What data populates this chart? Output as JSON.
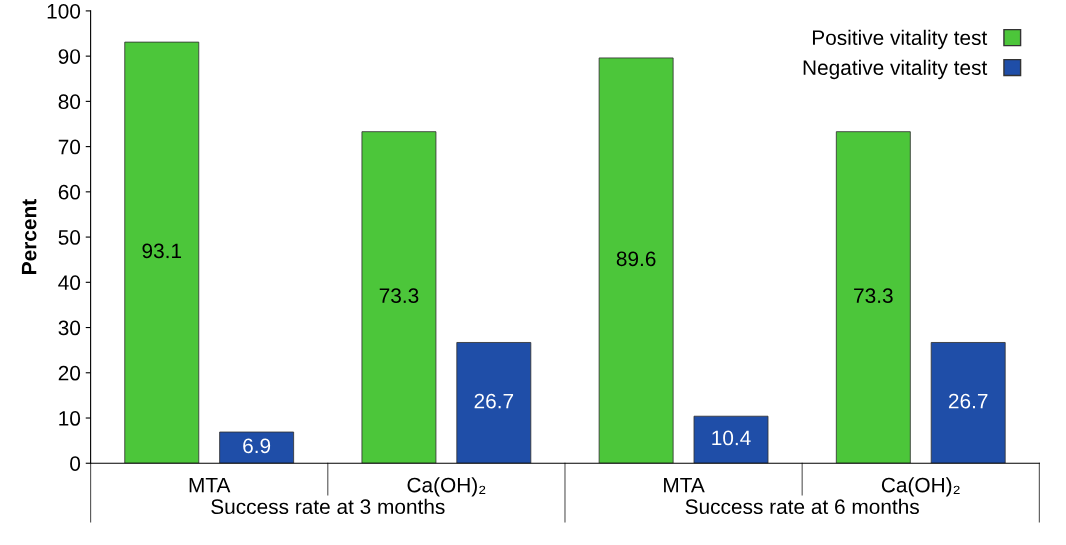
{
  "chart_data": {
    "type": "bar",
    "ylabel": "Percent",
    "categories": [
      "MTA",
      "Ca(OH)₂",
      "MTA",
      "Ca(OH)₂"
    ],
    "series": [
      {
        "name": "Positive vitality test",
        "color": "#4cc63a",
        "values": [
          93.1,
          73.3,
          89.6,
          73.3
        ]
      },
      {
        "name": "Negative vitality test",
        "color": "#1f4ea8",
        "values": [
          6.9,
          26.7,
          10.4,
          26.7
        ]
      }
    ],
    "ylim": [
      0,
      100
    ],
    "yticks": [
      0,
      10,
      20,
      30,
      40,
      50,
      60,
      70,
      80,
      90,
      100
    ],
    "data_labels": true,
    "legend": "top right",
    "grid": false,
    "annotations": [
      "Success rate at 3 months",
      "Success rate at 6 months"
    ]
  }
}
